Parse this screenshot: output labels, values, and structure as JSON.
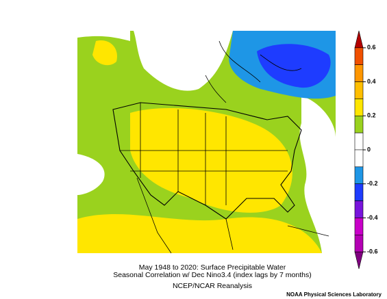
{
  "caption": {
    "line1": "May 1948 to 2020: Surface Precipitable Water",
    "line2": "Seasonal Correlation w/ Dec Nino3.4 (index lags by 7 months)",
    "line3": "NCEP/NCAR Reanalysis"
  },
  "credit": "NOAA Physical Sciences Laboratory",
  "colorbar": {
    "lim": [
      -0.7,
      0.7
    ],
    "ticks": [
      0.6,
      0.4,
      0.2,
      0,
      -0.2,
      -0.4,
      -0.6
    ],
    "colors": [
      "#b40000",
      "#f05000",
      "#ff9600",
      "#ffbe00",
      "#ffe600",
      "#9ad21e",
      "#ffffff",
      "#ffffff",
      "#1e96e6",
      "#1e3cff",
      "#7814dc",
      "#c800c8",
      "#b400b4",
      "#800080"
    ]
  }
}
